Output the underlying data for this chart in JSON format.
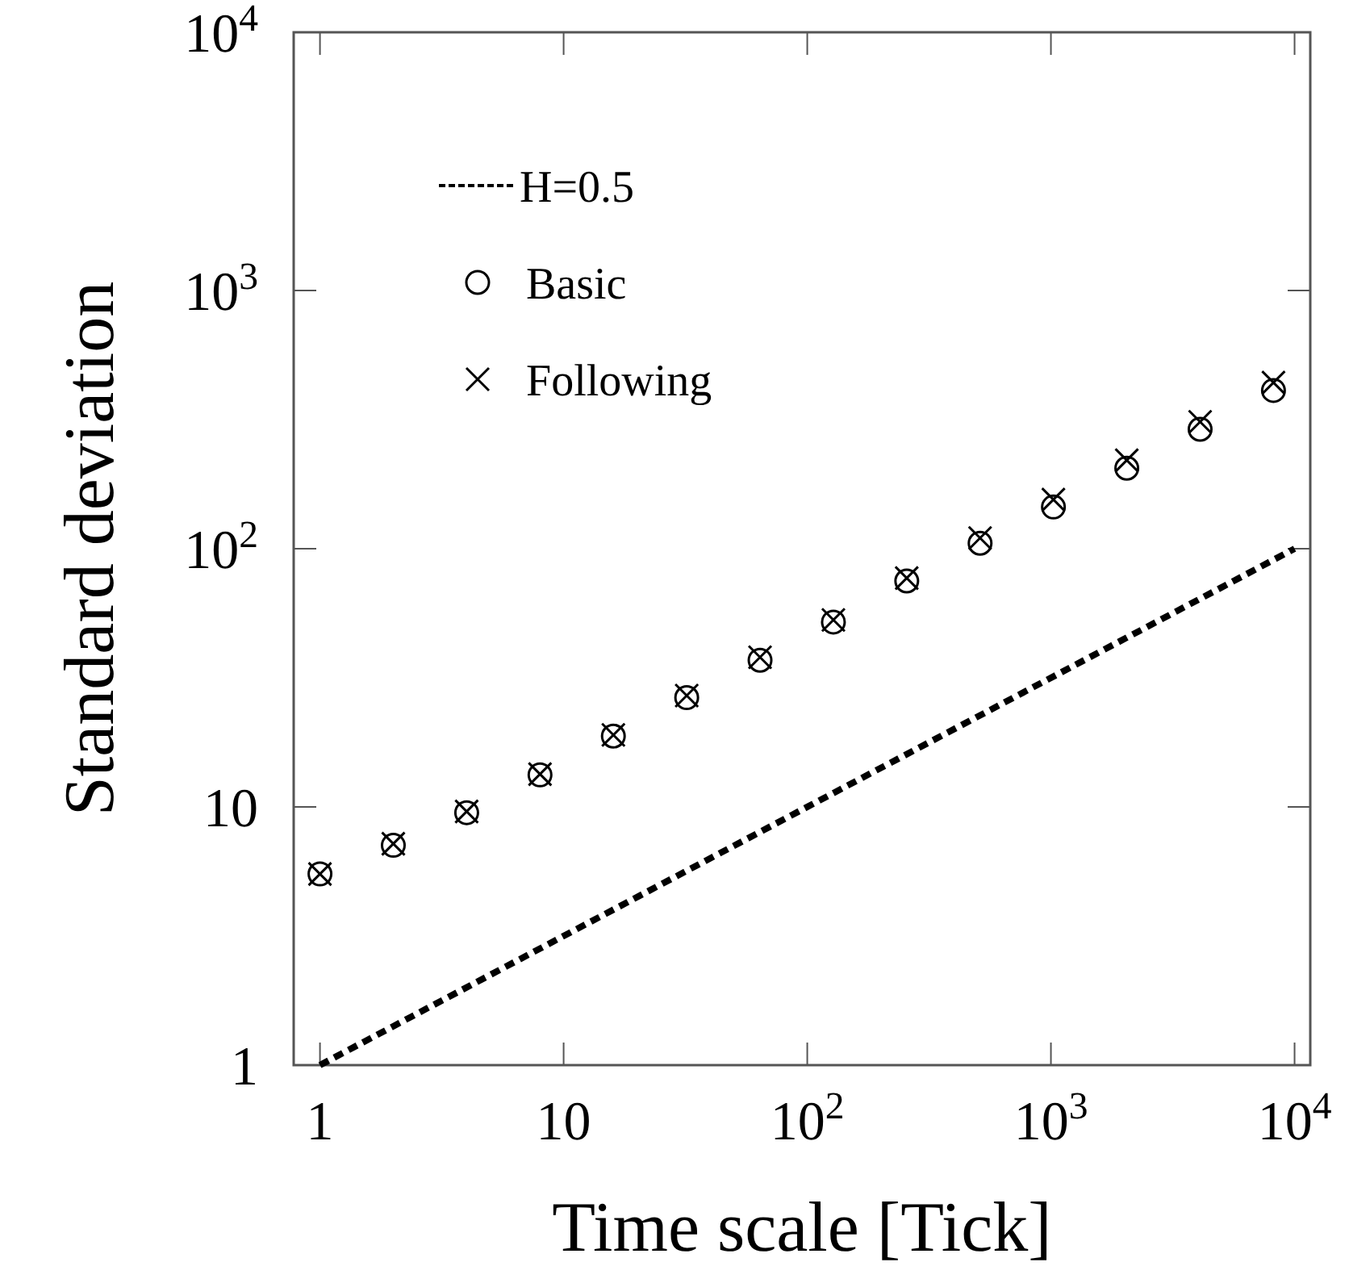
{
  "chart_data": {
    "type": "scatter",
    "xlabel": "Time scale [Tick]",
    "ylabel": "Standard deviation",
    "log": "xy",
    "xlim": [
      0.78,
      11600
    ],
    "ylim": [
      1,
      10000
    ],
    "xticks": [
      1,
      10,
      {
        "value": 100,
        "label": "10$^{2}$"
      },
      {
        "value": 1000,
        "label": "10$^{3}$"
      },
      {
        "value": 10000,
        "label": "10$^{4}$"
      }
    ],
    "yticks": [
      1,
      10,
      {
        "value": 100,
        "label": "10$^{2}$"
      },
      {
        "value": 1000,
        "label": "10$^{3}$"
      },
      {
        "value": 10000,
        "label": "10$^{4}$"
      }
    ],
    "grid": false,
    "legend": "top left",
    "series": [
      {
        "name": "H=0.5",
        "type": "line",
        "color": "#000000",
        "line_style": "dashed",
        "marker": "none",
        "x": [
          1,
          10000
        ],
        "values": [
          1,
          100
        ]
      },
      {
        "name": "Basic",
        "color": "#000000",
        "marker": "circle",
        "x": [
          1,
          2,
          4,
          8,
          16,
          32,
          64,
          128,
          256,
          512,
          1024,
          2048,
          4096,
          8192
        ],
        "values": [
          5.5,
          7.1,
          9.5,
          13.3,
          18.8,
          26.5,
          37,
          52,
          75,
          105,
          145,
          205,
          290,
          410
        ]
      },
      {
        "name": "Following",
        "color": "#000000",
        "marker": "cross",
        "x": [
          1,
          2,
          4,
          8,
          16,
          32,
          64,
          128,
          256,
          512,
          1024,
          2048,
          4096,
          8192
        ],
        "values": [
          5.5,
          7.2,
          9.6,
          13.4,
          19,
          27,
          38,
          53,
          77,
          110,
          155,
          220,
          310,
          440
        ]
      }
    ]
  }
}
